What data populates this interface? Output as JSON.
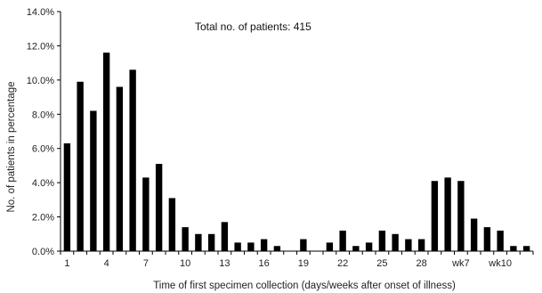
{
  "chart_data": {
    "type": "bar",
    "annotation": "Total no. of patients: 415",
    "xlabel": "Time of first specimen collection (days/weeks after onset of illness)",
    "ylabel": "No. of patients in percentage",
    "ylim": [
      0,
      14
    ],
    "yticks": [
      "0.0%",
      "2.0%",
      "4.0%",
      "6.0%",
      "8.0%",
      "10.0%",
      "12.0%",
      "14.0%"
    ],
    "ytick_values": [
      0,
      2,
      4,
      6,
      8,
      10,
      12,
      14
    ],
    "grid": false,
    "categories": [
      "1",
      "2",
      "3",
      "4",
      "5",
      "6",
      "7",
      "8",
      "9",
      "10",
      "11",
      "12",
      "13",
      "14",
      "15",
      "16",
      "17",
      "18",
      "19",
      "20",
      "21",
      "22",
      "23",
      "24",
      "25",
      "26",
      "27",
      "28",
      "wk5",
      "wk6",
      "wk7",
      "wk8",
      "wk9",
      "wk10",
      "wk11",
      "wk12"
    ],
    "xtick_labels": [
      {
        "index": 0,
        "text": "1"
      },
      {
        "index": 3,
        "text": "4"
      },
      {
        "index": 6,
        "text": "7"
      },
      {
        "index": 9,
        "text": "10"
      },
      {
        "index": 12,
        "text": "13"
      },
      {
        "index": 15,
        "text": "16"
      },
      {
        "index": 18,
        "text": "19"
      },
      {
        "index": 21,
        "text": "22"
      },
      {
        "index": 24,
        "text": "25"
      },
      {
        "index": 27,
        "text": "28"
      },
      {
        "index": 30,
        "text": "wk7"
      },
      {
        "index": 33,
        "text": "wk10"
      }
    ],
    "values": [
      6.3,
      9.9,
      8.2,
      11.6,
      9.6,
      10.6,
      4.3,
      5.1,
      3.1,
      1.4,
      1.0,
      1.0,
      1.7,
      0.5,
      0.5,
      0.7,
      0.3,
      0.0,
      0.7,
      0.0,
      0.5,
      1.2,
      0.3,
      0.5,
      1.2,
      1.0,
      0.7,
      0.7,
      4.1,
      4.3,
      4.1,
      1.9,
      1.4,
      1.2,
      0.3,
      0.3
    ]
  }
}
